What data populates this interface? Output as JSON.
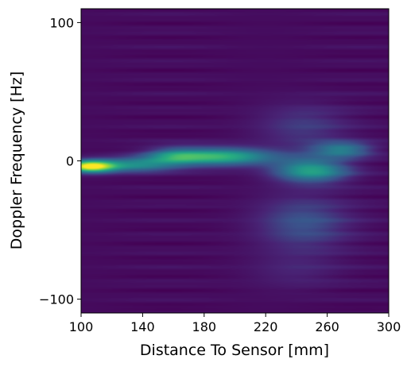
{
  "chart_data": {
    "type": "heatmap",
    "title": "",
    "xlabel": "Distance To Sensor [mm]",
    "ylabel": "Doppler Frequency [Hz]",
    "xlim": [
      100,
      300
    ],
    "ylim": [
      -110,
      110
    ],
    "xticks": [
      100,
      140,
      180,
      220,
      260,
      300
    ],
    "yticks": [
      100,
      0,
      -100
    ],
    "xtick_labels": [
      "100",
      "140",
      "180",
      "220",
      "260",
      "300"
    ],
    "ytick_labels": [
      "100",
      "0",
      "−100"
    ],
    "colormap": "viridis",
    "value_range": [
      0,
      1
    ],
    "grid": false,
    "blobs": [
      {
        "x": 106,
        "y": -4,
        "sx": 11,
        "sy": 3.0,
        "amp": 0.98
      },
      {
        "x": 135,
        "y": -3,
        "sx": 17,
        "sy": 3.5,
        "amp": 0.42
      },
      {
        "x": 188,
        "y": 3,
        "sx": 26,
        "sy": 4.5,
        "amp": 0.62
      },
      {
        "x": 160,
        "y": 3,
        "sx": 12,
        "sy": 4.5,
        "amp": 0.25
      },
      {
        "x": 250,
        "y": -7,
        "sx": 17,
        "sy": 6.0,
        "amp": 0.52
      },
      {
        "x": 270,
        "y": 8,
        "sx": 14,
        "sy": 4.0,
        "amp": 0.38
      },
      {
        "x": 245,
        "y": -45,
        "sx": 22,
        "sy": 14,
        "amp": 0.22
      },
      {
        "x": 245,
        "y": 25,
        "sx": 22,
        "sy": 12,
        "amp": 0.15
      },
      {
        "x": 240,
        "y": -80,
        "sx": 22,
        "sy": 10,
        "amp": 0.08
      }
    ],
    "background_level": 0.04
  }
}
